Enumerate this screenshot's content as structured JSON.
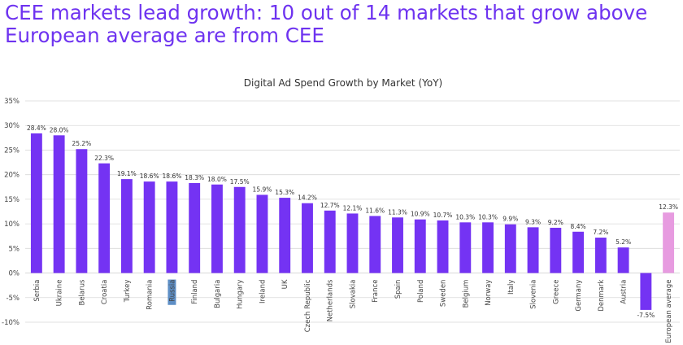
{
  "headline": "CEE markets lead growth: 10 out of 14 markets that grow above European average are from CEE",
  "colors": {
    "bar": "#7433f3",
    "average_bar": "#e79be0",
    "headline": "#6e33f0",
    "grid": "#d9d9d9",
    "highlight": "#5e8fc6"
  },
  "chart_data": {
    "type": "bar",
    "title": "Digital Ad Spend Growth by Market (YoY)",
    "xlabel": "",
    "ylabel": "",
    "ylim": [
      -10,
      35
    ],
    "yticks": [
      -10,
      -5,
      0,
      5,
      10,
      15,
      20,
      25,
      30,
      35
    ],
    "ytick_format": "percent",
    "grid": true,
    "legend": "none",
    "categories": [
      "Serbia",
      "Ukraine",
      "Belarus",
      "Croatia",
      "Turkey",
      "Romania",
      "Russia",
      "Finland",
      "Bulgaria",
      "Hungary",
      "Ireland",
      "UK",
      "Czech Republic",
      "Netherlands",
      "Slovakia",
      "France",
      "Spain",
      "Poland",
      "Sweden",
      "Belgium",
      "Norway",
      "Italy",
      "Slovenia",
      "Greece",
      "Germany",
      "Denmark",
      "Austria",
      "",
      "European average"
    ],
    "values": [
      28.4,
      28.0,
      25.2,
      22.3,
      19.1,
      18.6,
      18.6,
      18.3,
      18.0,
      17.5,
      15.9,
      15.3,
      14.2,
      12.7,
      12.1,
      11.6,
      11.3,
      10.9,
      10.7,
      10.3,
      10.3,
      9.9,
      9.3,
      9.2,
      8.4,
      7.2,
      5.2,
      -7.5,
      12.3
    ],
    "data_labels": [
      "28.4%",
      "28.0%",
      "25.2%",
      "22.3%",
      "19.1%",
      "18.6%",
      "18.6%",
      "18.3%",
      "18.0%",
      "17.5%",
      "15.9%",
      "15.3%",
      "14.2%",
      "12.7%",
      "12.1%",
      "11.6%",
      "11.3%",
      "10.9%",
      "10.7%",
      "10.3%",
      "10.3%",
      "9.9%",
      "9.3%",
      "9.2%",
      "8.4%",
      "7.2%",
      "5.2%",
      "-7.5%",
      "12.3%"
    ],
    "highlighted_categories": [
      "European average"
    ],
    "highlighted_tick_labels": [
      "Russia"
    ]
  }
}
